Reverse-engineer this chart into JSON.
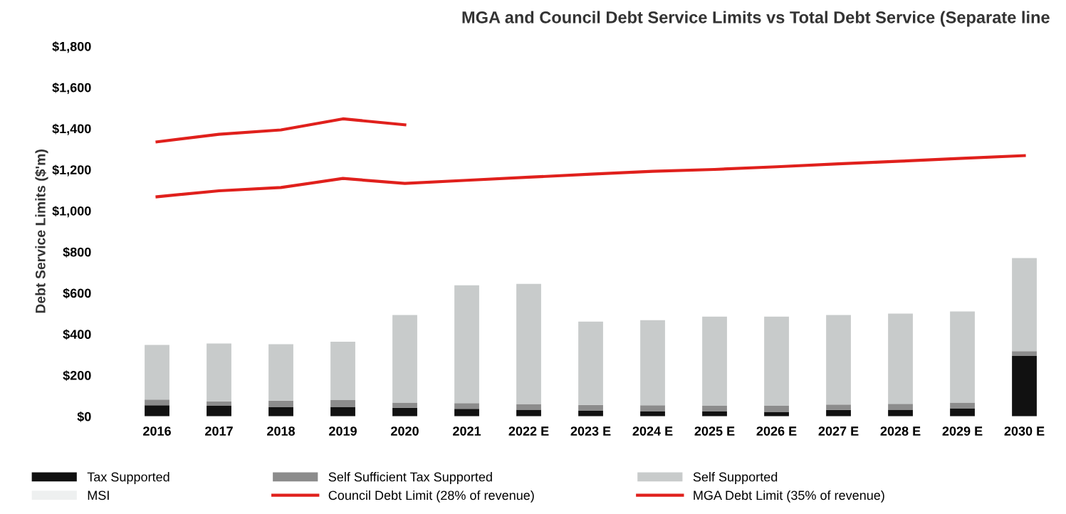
{
  "chart_data": {
    "type": "bar",
    "stacked": true,
    "title": "MGA and Council Debt Service Limits vs Total Debt Service (Separate line",
    "ylabel": "Debt Service Limits ($'m)",
    "categories": [
      "2016",
      "2017",
      "2018",
      "2019",
      "2020",
      "2021",
      "2022 E",
      "2023 E",
      "2024 E",
      "2025 E",
      "2026 E",
      "2027 E",
      "2028 E",
      "2029 E",
      "2030 E"
    ],
    "series": [
      {
        "name": "Tax Supported",
        "color": "#111111",
        "values": [
          54,
          51,
          44,
          46,
          42,
          37,
          32,
          27,
          24,
          24,
          22,
          31,
          32,
          39,
          294
        ]
      },
      {
        "name": "Self Sufficient Tax Supported",
        "color": "#8c8c8c",
        "values": [
          28,
          22,
          32,
          33,
          25,
          27,
          28,
          29,
          30,
          27,
          29,
          26,
          29,
          28,
          23
        ]
      },
      {
        "name": "Self Supported",
        "color": "#c8cbcb",
        "values": [
          265,
          281,
          275,
          284,
          426,
          573,
          584,
          405,
          414,
          434,
          434,
          436,
          439,
          443,
          453
        ]
      },
      {
        "name": "MSI",
        "color": "#eef0f0",
        "values": [
          null,
          null,
          null,
          null,
          null,
          null,
          null,
          null,
          null,
          null,
          null,
          null,
          null,
          null,
          null
        ]
      },
      {
        "name": "Council Debt Limit (28% of revenue)",
        "type": "line",
        "color": "#e0201c",
        "values": [
          1068,
          1097,
          1113,
          1157,
          1133,
          1148,
          1163,
          1178,
          1192,
          1201,
          1214,
          1228,
          1241,
          1255,
          1268
        ]
      },
      {
        "name": "MGA Debt Limit (35% of revenue)",
        "type": "line",
        "color": "#e0201c",
        "values": [
          1335,
          1372,
          1393,
          1447,
          1418,
          null,
          null,
          null,
          null,
          null,
          null,
          null,
          null,
          null,
          null
        ]
      }
    ],
    "ylim": [
      0,
      1800
    ],
    "yticks": [
      {
        "value": 0,
        "label": "$0"
      },
      {
        "value": 200,
        "label": "$200"
      },
      {
        "value": 400,
        "label": "$400"
      },
      {
        "value": 600,
        "label": "$600"
      },
      {
        "value": 800,
        "label": "$800"
      },
      {
        "value": 1000,
        "label": "$1,000"
      },
      {
        "value": 1200,
        "label": "$1,200"
      },
      {
        "value": 1400,
        "label": "$1,400"
      },
      {
        "value": 1600,
        "label": "$1,600"
      },
      {
        "value": 1800,
        "label": "$1,800"
      }
    ],
    "legend": "bottom"
  }
}
